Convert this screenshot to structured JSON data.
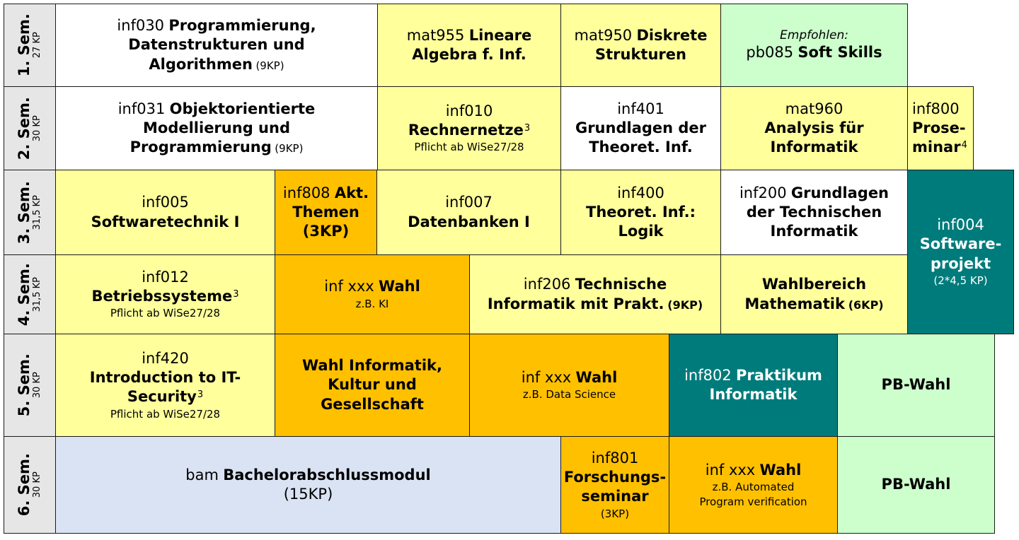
{
  "semesters": [
    {
      "label": "1. Sem.",
      "kp": "27 KP"
    },
    {
      "label": "2. Sem.",
      "kp": "30 KP"
    },
    {
      "label": "3. Sem.",
      "kp": "31,5 KP"
    },
    {
      "label": "4. Sem.",
      "kp": "31,5 KP"
    },
    {
      "label": "5. Sem.",
      "kp": "30 KP"
    },
    {
      "label": "6. Sem.",
      "kp": "30 KP"
    }
  ],
  "rows": [
    {
      "cells": [
        {
          "lines": [
            [
              "inf030",
              "Programmierung,"
            ],
            [
              "Datenstrukturen und"
            ],
            [
              "Algorithmen",
              "(9KP)"
            ]
          ]
        },
        {
          "lines": [
            [
              "mat955",
              "Lineare"
            ],
            [
              "Algebra f. Inf."
            ]
          ]
        },
        {
          "lines": [
            [
              "mat950",
              "Diskrete"
            ],
            [
              "Strukturen"
            ]
          ]
        },
        {
          "lines": [
            [
              "Empfohlen:"
            ],
            [
              "pb085",
              "Soft Skills"
            ]
          ]
        }
      ]
    },
    {
      "cells": [
        {
          "lines": [
            [
              "inf031",
              "Objektorientierte"
            ],
            [
              "Modellierung und"
            ],
            [
              "Programmierung",
              "(9KP)"
            ]
          ]
        },
        {
          "lines": [
            [
              "inf010"
            ],
            [
              "Rechnernetze",
              "3"
            ],
            [
              "Pflicht ab WiSe27/28"
            ]
          ]
        },
        {
          "lines": [
            [
              "inf401"
            ],
            [
              "Grundlagen der"
            ],
            [
              "Theoret. Inf."
            ]
          ]
        },
        {
          "lines": [
            [
              "mat960"
            ],
            [
              "Analysis für"
            ],
            [
              "Informatik"
            ]
          ]
        },
        {
          "lines": [
            [
              "inf800"
            ],
            [
              "Prose-"
            ],
            [
              "minar",
              "4"
            ]
          ]
        }
      ]
    },
    {
      "cells": [
        {
          "lines": [
            [
              "inf005"
            ],
            [
              "Softwaretechnik I"
            ]
          ]
        },
        {
          "lines": [
            [
              "inf808",
              "Akt."
            ],
            [
              "Themen"
            ],
            [
              "(3KP)"
            ]
          ]
        },
        {
          "lines": [
            [
              "inf007"
            ],
            [
              "Datenbanken I"
            ]
          ]
        },
        {
          "lines": [
            [
              "inf400"
            ],
            [
              "Theoret. Inf.:"
            ],
            [
              "Logik"
            ]
          ]
        },
        {
          "lines": [
            [
              "inf200",
              "Grundlagen"
            ],
            [
              "der Technischen"
            ],
            [
              "Informatik"
            ]
          ]
        },
        {
          "lines": [
            [
              "inf004"
            ],
            [
              "Software-"
            ],
            [
              "projekt"
            ],
            [
              "(2*4,5 KP)"
            ]
          ]
        }
      ]
    },
    {
      "cells": [
        {
          "lines": [
            [
              "inf012"
            ],
            [
              "Betriebssysteme",
              "3"
            ],
            [
              "Pflicht ab WiSe27/28"
            ]
          ]
        },
        {
          "lines": [
            [
              "inf xxx",
              "Wahl"
            ],
            [
              "z.B. KI"
            ]
          ]
        },
        {
          "lines": [
            [
              "inf206",
              "Technische"
            ],
            [
              "Informatik mit Prakt.",
              "(9KP)"
            ]
          ]
        },
        {
          "lines": [
            [
              "Wahlbereich"
            ],
            [
              "Mathematik",
              "(6KP)"
            ]
          ]
        }
      ]
    },
    {
      "cells": [
        {
          "lines": [
            [
              "inf420"
            ],
            [
              "Introduction to IT-"
            ],
            [
              "Security",
              "3"
            ],
            [
              "Pflicht ab WiSe27/28"
            ]
          ]
        },
        {
          "lines": [
            [
              "Wahl Informatik,"
            ],
            [
              "Kultur und"
            ],
            [
              "Gesellschaft"
            ]
          ]
        },
        {
          "lines": [
            [
              "inf xxx",
              "Wahl"
            ],
            [
              "z.B. Data Science"
            ]
          ]
        },
        {
          "lines": [
            [
              "inf802",
              "Praktikum"
            ],
            [
              "Informatik"
            ]
          ]
        },
        {
          "lines": [
            [
              "PB-Wahl"
            ]
          ]
        }
      ]
    },
    {
      "cells": [
        {
          "lines": [
            [
              "bam",
              "Bachelorabschlussmodul"
            ],
            [
              "(15KP)"
            ]
          ]
        },
        {
          "lines": [
            [
              "inf801"
            ],
            [
              "Forschungs-"
            ],
            [
              "seminar"
            ],
            [
              "(3KP)"
            ]
          ]
        },
        {
          "lines": [
            [
              "inf xxx",
              "Wahl"
            ],
            [
              "z.B. Automated"
            ],
            [
              "Program verification"
            ]
          ]
        },
        {
          "lines": [
            [
              "PB-Wahl"
            ]
          ]
        }
      ]
    }
  ]
}
